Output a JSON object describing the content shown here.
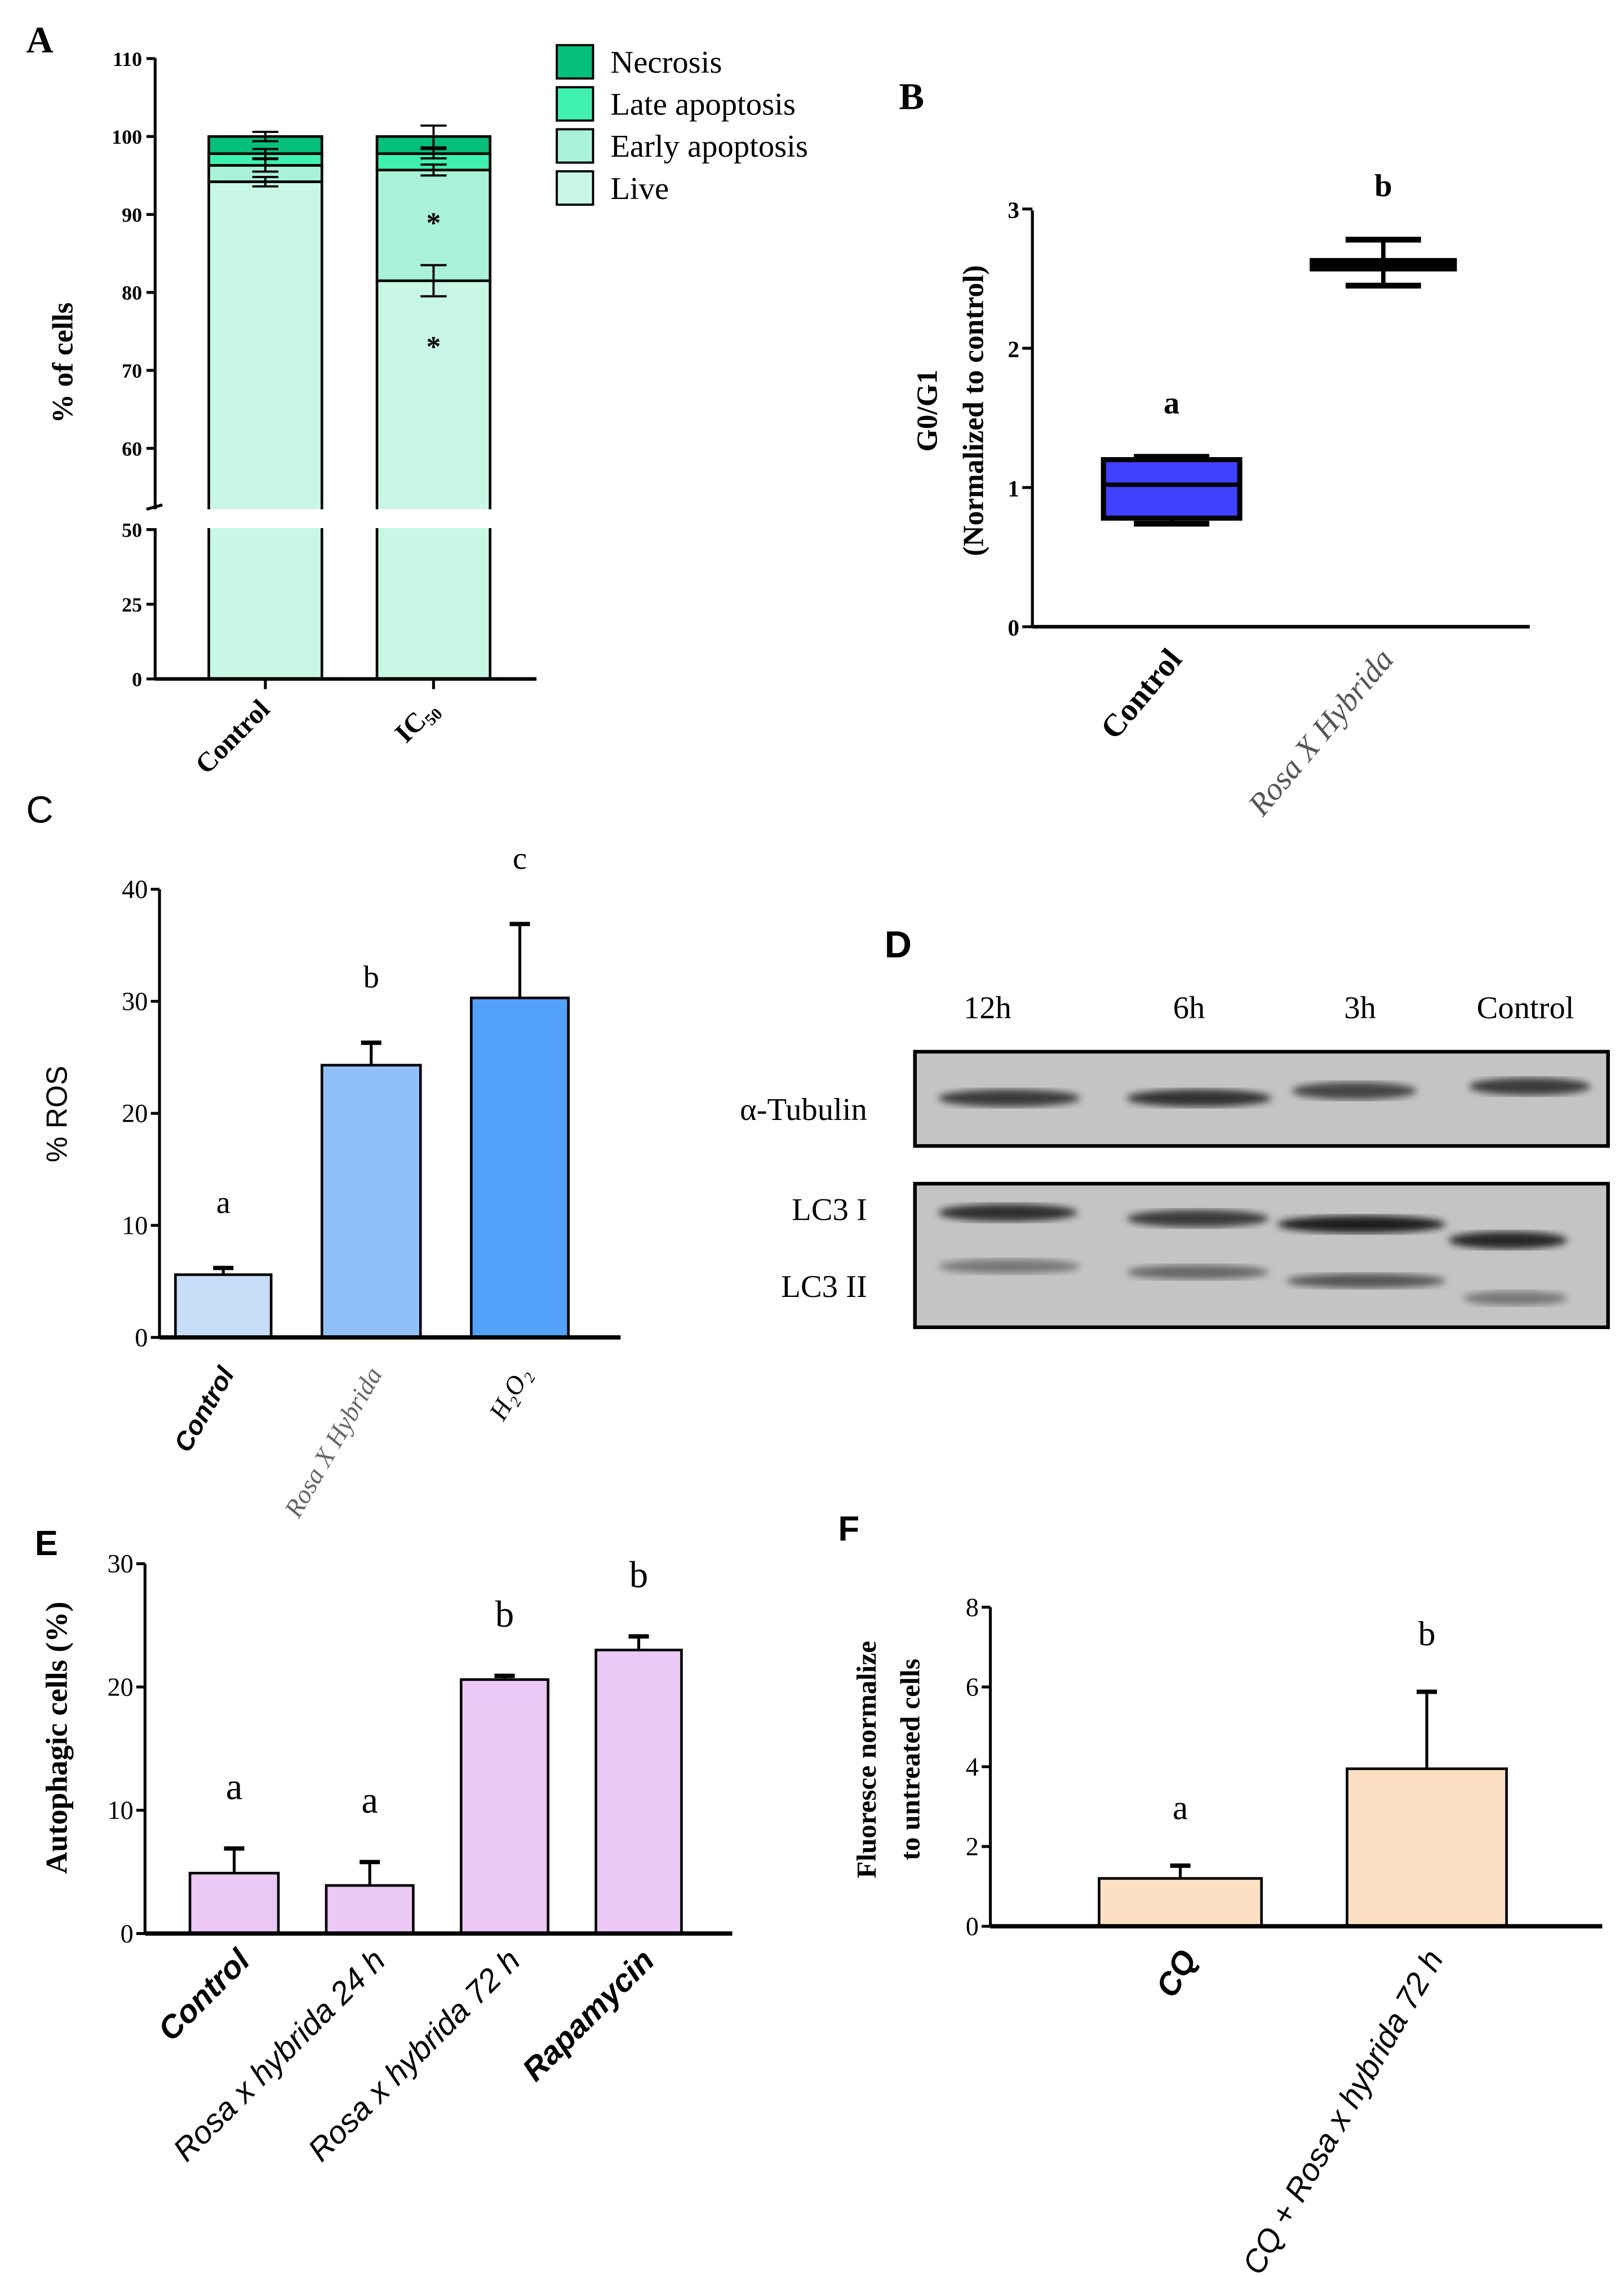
{
  "panel_letters": {
    "A": "A",
    "B": "B",
    "C": "C",
    "D": "D",
    "E": "E",
    "F": "F"
  },
  "chart_data": [
    {
      "panel": "A",
      "type": "bar",
      "stacked": true,
      "ylabel": "% of cells",
      "categories": [
        "Control",
        "IC₅₀"
      ],
      "ylim": [
        0,
        110
      ],
      "y_axis_break": [
        50,
        55
      ],
      "yticks": [
        "0",
        "25",
        "50",
        "60",
        "70",
        "80",
        "90",
        "100",
        "110"
      ],
      "legend_placement": "top-right",
      "series": [
        {
          "name": "Live",
          "color": "#c9f7e5",
          "values": [
            94.2,
            81.5
          ],
          "error": [
            0.6,
            2.0
          ],
          "annotations": [
            "",
            "*"
          ]
        },
        {
          "name": "Early apoptosis",
          "color": "#a9f2d9",
          "values": [
            2.1,
            14.2
          ],
          "error": [
            0.8,
            0.7
          ],
          "annotations": [
            "",
            "*"
          ]
        },
        {
          "name": "Late apoptosis",
          "color": "#3ff0b0",
          "values": [
            1.5,
            2.1
          ],
          "error": [
            0.6,
            0.6
          ],
          "annotations": [
            "",
            ""
          ]
        },
        {
          "name": "Necrosis",
          "color": "#05bf7b",
          "values": [
            2.2,
            2.2
          ],
          "error": [
            0.6,
            1.4
          ],
          "annotations": [
            "",
            ""
          ]
        }
      ],
      "legend_order": [
        "Necrosis",
        "Late apoptosis",
        "Early apoptosis",
        "Live"
      ]
    },
    {
      "panel": "B",
      "type": "box",
      "ylabel_line1": "G0/G1",
      "ylabel_line2": "(Normalized to control)",
      "categories": [
        "Control",
        "Rosa X Hybrida"
      ],
      "ylim": [
        0,
        3
      ],
      "yticks": [
        "0",
        "1",
        "2",
        "3"
      ],
      "boxes": [
        {
          "min": 0.74,
          "q1": 0.78,
          "median": 1.02,
          "q3": 1.2,
          "max": 1.22,
          "color": "#4040ff"
        },
        {
          "min": 2.45,
          "q1": 2.57,
          "median": 2.6,
          "q3": 2.63,
          "max": 2.78,
          "color": "#000000"
        }
      ],
      "letters": [
        "a",
        "b"
      ]
    },
    {
      "panel": "C",
      "type": "bar",
      "ylabel": "% ROS",
      "categories": [
        "Control",
        "Rosa X Hybrida",
        "H₂O₂"
      ],
      "values": [
        5.6,
        24.3,
        30.3
      ],
      "error": [
        0.6,
        2.0,
        6.6
      ],
      "colors": [
        "#c6dcf7",
        "#91c0f8",
        "#54a1f9"
      ],
      "ylim": [
        0,
        40
      ],
      "yticks": [
        "0",
        "10",
        "20",
        "30",
        "40"
      ],
      "letters": [
        "a",
        "b",
        "c"
      ]
    },
    {
      "panel": "E",
      "type": "bar",
      "ylabel": "Autophagic cells (%)",
      "categories": [
        "Control",
        "Rosa x hybrida  24 h",
        "Rosa x hybrida 72 h",
        "Rapamycin"
      ],
      "values": [
        4.9,
        3.9,
        20.6,
        23.0
      ],
      "error": [
        2.0,
        1.9,
        0.3,
        1.1
      ],
      "colors": [
        "#ebc8f5",
        "#ebc8f5",
        "#ebc8f5",
        "#ebc8f5"
      ],
      "ylim": [
        0,
        30
      ],
      "yticks": [
        "0",
        "10",
        "20",
        "30"
      ],
      "letters": [
        "a",
        "a",
        "b",
        "b"
      ]
    },
    {
      "panel": "F",
      "type": "bar",
      "ylabel_line1": "Fluoresce normalize",
      "ylabel_line2": "to untreated cells",
      "categories": [
        "CQ",
        "CQ + Rosa x hybrida  72 h"
      ],
      "values": [
        1.2,
        3.95
      ],
      "error": [
        0.32,
        1.93
      ],
      "colors": [
        "#fde0c3",
        "#fde0c3"
      ],
      "ylim": [
        0,
        8
      ],
      "yticks": [
        "0",
        "2",
        "4",
        "6",
        "8"
      ],
      "letters": [
        "a",
        "b"
      ]
    }
  ],
  "western_blot": {
    "panel": "D",
    "lanes": [
      "12h",
      "6h",
      "3h",
      "Control"
    ],
    "rows": [
      "α-Tubulin",
      "LC3 I",
      "LC3 II"
    ],
    "background": "#c4c4c4"
  }
}
